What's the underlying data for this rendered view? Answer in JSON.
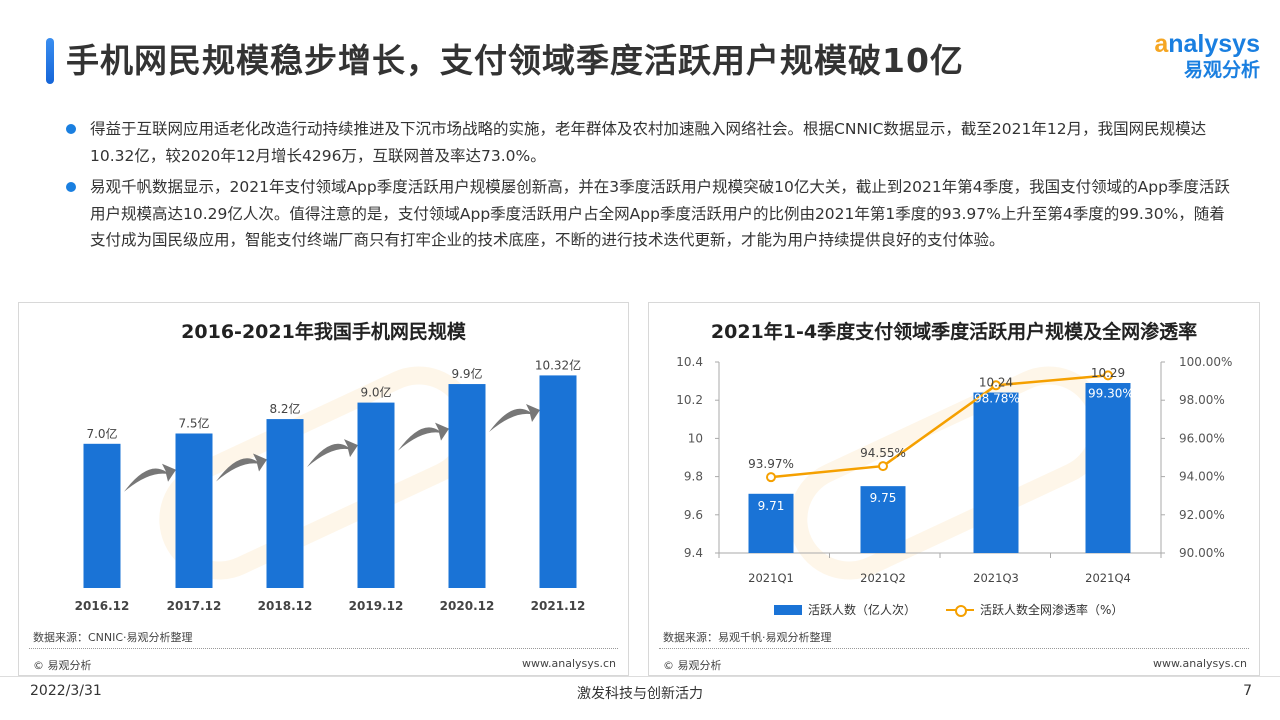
{
  "header": {
    "title": "手机网民规模稳步增长，支付领域季度活跃用户规模破10亿",
    "logo_en": "nalysys",
    "logo_en_prefix": "a",
    "logo_cn": "易观分析"
  },
  "bullets": [
    "得益于互联网应用适老化改造行动持续推进及下沉市场战略的实施，老年群体及农村加速融入网络社会。根据CNNIC数据显示，截至2021年12月，我国网民规模达10.32亿，较2020年12月增长4296万，互联网普及率达73.0%。",
    "易观千帆数据显示，2021年支付领域App季度活跃用户规模屡创新高，并在3季度活跃用户规模突破10亿大关，截止到2021年第4季度，我国支付领域的App季度活跃用户规模高达10.29亿人次。值得注意的是，支付领域App季度活跃用户占全网App季度活跃用户的比例由2021年第1季度的93.97%上升至第4季度的99.30%，随着支付成为国民级应用，智能支付终端厂商只有打牢企业的技术底座，不断的进行技术迭代更新，才能为用户持续提供良好的支付体验。"
  ],
  "colors": {
    "bar": "#1a73d6",
    "line": "#f5a000",
    "accent": "#1a7fe0"
  },
  "chart_data": [
    {
      "type": "bar",
      "title": "2016-2021年我国手机网民规模",
      "categories": [
        "2016.12",
        "2017.12",
        "2018.12",
        "2019.12",
        "2020.12",
        "2021.12"
      ],
      "values": [
        7.0,
        7.5,
        8.2,
        9.0,
        9.9,
        10.32
      ],
      "labels": [
        "7.0亿",
        "7.5亿",
        "8.2亿",
        "9.0亿",
        "9.9亿",
        "10.32亿"
      ],
      "unit": "亿",
      "source": "数据来源：CNNIC·易观分析整理",
      "copyright": "© 易观分析",
      "url": "www.analysys.cn"
    },
    {
      "type": "bar+line",
      "title": "2021年1-4季度支付领域季度活跃用户规模及全网渗透率",
      "categories": [
        "2021Q1",
        "2021Q2",
        "2021Q3",
        "2021Q4"
      ],
      "series": [
        {
          "name": "活跃人数（亿人次）",
          "type": "bar",
          "axis": "left",
          "values": [
            9.71,
            9.75,
            10.24,
            10.29
          ],
          "labels": [
            "9.71",
            "9.75",
            "10.24",
            "10.29"
          ]
        },
        {
          "name": "活跃人数全网渗透率（%）",
          "type": "line",
          "axis": "right",
          "values": [
            93.97,
            94.55,
            98.78,
            99.3
          ],
          "labels": [
            "93.97%",
            "94.55%",
            "98.78%",
            "99.30%"
          ]
        }
      ],
      "ylim": [
        9.4,
        10.4
      ],
      "yticks": [
        "9.4",
        "9.6",
        "9.8",
        "10",
        "10.2",
        "10.4"
      ],
      "y2lim": [
        90,
        100
      ],
      "y2ticks": [
        "90.00%",
        "92.00%",
        "94.00%",
        "96.00%",
        "98.00%",
        "100.00%"
      ],
      "legend_position": "bottom",
      "source": "数据来源：易观千帆·易观分析整理",
      "copyright": "© 易观分析",
      "url": "www.analysys.cn"
    }
  ],
  "footer": {
    "date": "2022/3/31",
    "slogan": "激发科技与创新活力",
    "page": "7"
  }
}
